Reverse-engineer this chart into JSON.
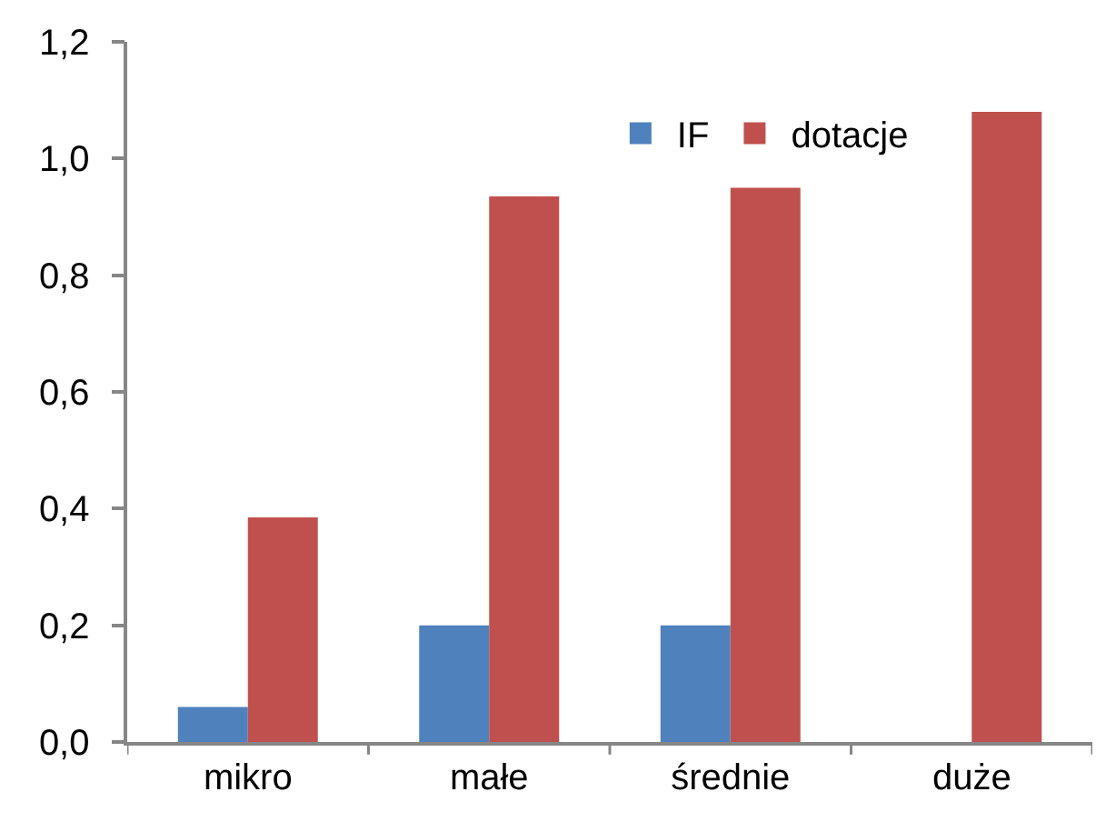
{
  "chart_data": {
    "type": "bar",
    "categories": [
      "mikro",
      "małe",
      "średnie",
      "duże"
    ],
    "series": [
      {
        "name": "IF",
        "color": "#4f81bd",
        "values": [
          0.06,
          0.2,
          0.2,
          null
        ]
      },
      {
        "name": "dotacje",
        "color": "#c0504d",
        "values": [
          0.385,
          0.935,
          0.95,
          1.08
        ]
      }
    ],
    "ylim": [
      0,
      1.2
    ],
    "yticks": [
      {
        "value": 0,
        "label": "0,0"
      },
      {
        "value": 0.2,
        "label": "0,2"
      },
      {
        "value": 0.4,
        "label": "0,4"
      },
      {
        "value": 0.6,
        "label": "0,6"
      },
      {
        "value": 0.8,
        "label": "0,8"
      },
      {
        "value": 1.0,
        "label": "1,0"
      },
      {
        "value": 1.2,
        "label": "1,2"
      }
    ],
    "grid": false,
    "legend": "top right"
  }
}
